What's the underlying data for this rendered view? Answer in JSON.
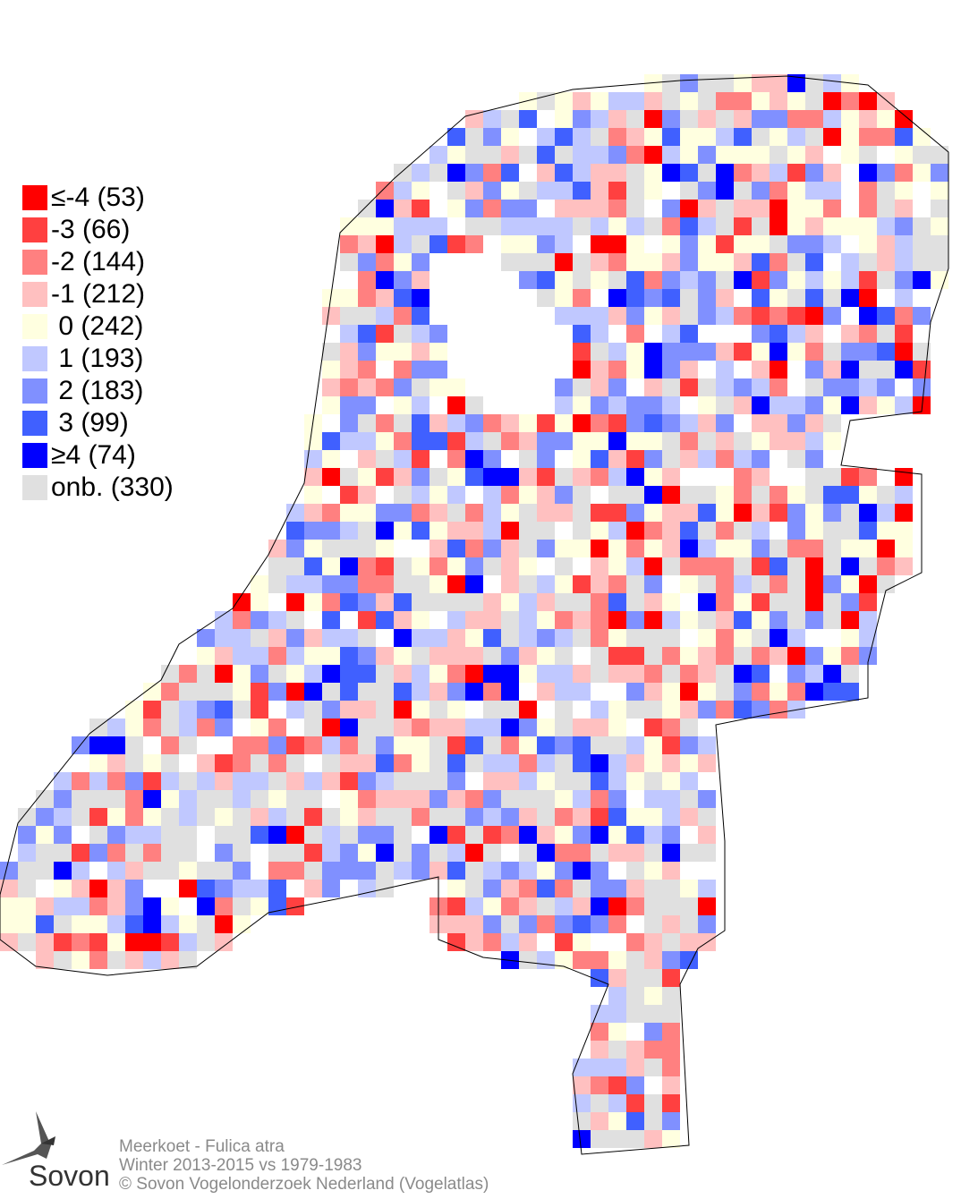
{
  "legend": [
    {
      "label": "≤-4 (53)",
      "value": -4,
      "count": 53,
      "color": "#ff0000"
    },
    {
      "label": "-3 (66)",
      "value": -3,
      "count": 66,
      "color": "#ff4040"
    },
    {
      "label": "-2 (144)",
      "value": -2,
      "count": 144,
      "color": "#ff8080"
    },
    {
      "label": "-1 (212)",
      "value": -1,
      "count": 212,
      "color": "#ffc0c0"
    },
    {
      "label": " 0 (242)",
      "value": 0,
      "count": 242,
      "color": "#ffffe0"
    },
    {
      "label": " 1 (193)",
      "value": 1,
      "count": 193,
      "color": "#c0c8ff"
    },
    {
      "label": " 2 (183)",
      "value": 2,
      "count": 183,
      "color": "#8090ff"
    },
    {
      "label": " 3 (99)",
      "value": 3,
      "count": 99,
      "color": "#4060ff"
    },
    {
      "label": "≥4 (74)",
      "value": 4,
      "count": 74,
      "color": "#0000ff"
    },
    {
      "label": "onb. (330)",
      "value": null,
      "count": 330,
      "color": "#e0e0e0"
    }
  ],
  "footer": {
    "species": "Meerkoet - Fulica atra",
    "period": "Winter 2013-2015 vs 1979-1983",
    "copyright": "© Sovon Vogelonderzoek Nederland (Vogelatlas)"
  },
  "logo": {
    "text": "Sovon"
  }
}
